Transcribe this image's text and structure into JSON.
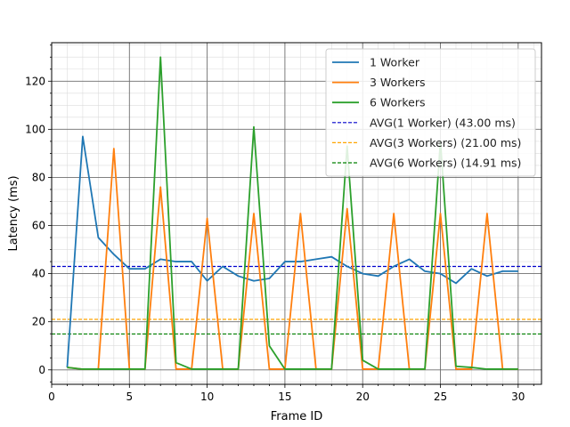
{
  "chart_data": {
    "type": "line",
    "xlabel": "Frame ID",
    "ylabel": "Latency (ms)",
    "xlim": [
      0,
      31.5
    ],
    "ylim": [
      -6,
      136
    ],
    "xticks": [
      0,
      5,
      10,
      15,
      20,
      25,
      30
    ],
    "yticks": [
      0,
      20,
      40,
      60,
      80,
      100,
      120
    ],
    "grid": true,
    "minor_grid": true,
    "legend_position": "top-right",
    "x": [
      1,
      2,
      3,
      4,
      5,
      6,
      7,
      8,
      9,
      10,
      11,
      12,
      13,
      14,
      15,
      16,
      17,
      18,
      19,
      20,
      21,
      22,
      23,
      24,
      25,
      26,
      27,
      28,
      29,
      30
    ],
    "series": [
      {
        "name": "1 Worker",
        "color": "#1f77b4",
        "style": "solid",
        "values": [
          1,
          97,
          55,
          48,
          42,
          42,
          46,
          45,
          45,
          37,
          43,
          39,
          37,
          38,
          45,
          45,
          46,
          47,
          43,
          40,
          39,
          43,
          46,
          41,
          40,
          36,
          42,
          39,
          41,
          41
        ]
      },
      {
        "name": "3 Workers",
        "color": "#ff7f0e",
        "style": "solid",
        "values": [
          1,
          0.3,
          0.3,
          92,
          0.3,
          0.3,
          76,
          0.3,
          0.3,
          63,
          0.3,
          0.3,
          65,
          0.3,
          0.3,
          65,
          0.3,
          0.3,
          67,
          0.3,
          0.3,
          65,
          0.3,
          0.3,
          65,
          0.3,
          0.3,
          65,
          0.3,
          0.3
        ]
      },
      {
        "name": "6 Workers",
        "color": "#2ca02c",
        "style": "solid",
        "values": [
          1,
          0.3,
          0.3,
          0.3,
          0.3,
          0.3,
          130,
          3,
          0.3,
          0.3,
          0.3,
          0.3,
          101,
          10,
          0.3,
          0.3,
          0.3,
          0.3,
          93,
          4,
          0.3,
          0.3,
          0.3,
          0.3,
          95,
          1.5,
          1,
          0.3,
          0.3,
          0.3
        ]
      }
    ],
    "averages": [
      {
        "name": "AVG(1 Worker) (43.00 ms)",
        "value": 43.0,
        "color": "#0000cc"
      },
      {
        "name": "AVG(3 Workers) (21.00 ms)",
        "value": 21.0,
        "color": "#ffa500"
      },
      {
        "name": "AVG(6 Workers) (14.91 ms)",
        "value": 14.91,
        "color": "#008000"
      }
    ]
  }
}
